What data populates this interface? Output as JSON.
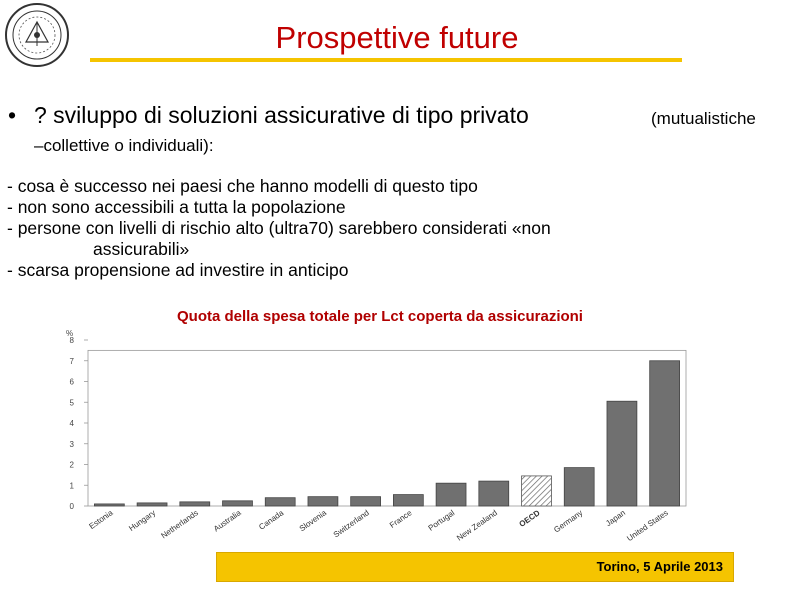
{
  "slide": {
    "title": "Prospettive future",
    "bullet": {
      "text": "? sviluppo di soluzioni assicurative di tipo privato",
      "paren": "(mutualistiche",
      "continuation": "–collettive o individuali):"
    },
    "sub_items": [
      "- cosa è successo nei paesi che hanno modelli di questo tipo",
      "- non sono accessibili a tutta la popolazione",
      "- persone con livelli di rischio alto (ultra70) sarebbero considerati «non",
      "assicurabili»",
      "- scarsa propensione ad investire in anticipo"
    ],
    "footer": "Torino, 5 Aprile 2013"
  },
  "colors": {
    "title": "#c00000",
    "accent": "#f5c400",
    "chart_title": "#b00000",
    "bar": "#707070",
    "oecd_bar": "hatched"
  },
  "chart_data": {
    "type": "bar",
    "title": "Quota della spesa totale per Lct coperta da assicurazioni",
    "ylabel": "%",
    "ylim": [
      0,
      8
    ],
    "yticks": [
      0,
      1,
      2,
      3,
      4,
      5,
      6,
      7,
      8
    ],
    "grid": false,
    "categories": [
      "Estonia",
      "Hungary",
      "Netherlands",
      "Australia",
      "Canada",
      "Slovenia",
      "Switzerland",
      "France",
      "Portugal",
      "New Zealand",
      "OECD",
      "Germany",
      "Japan",
      "United States"
    ],
    "values": [
      0.1,
      0.15,
      0.2,
      0.25,
      0.4,
      0.45,
      0.45,
      0.55,
      1.1,
      1.2,
      1.45,
      1.85,
      5.05,
      7.0
    ],
    "highlight": "OECD"
  }
}
